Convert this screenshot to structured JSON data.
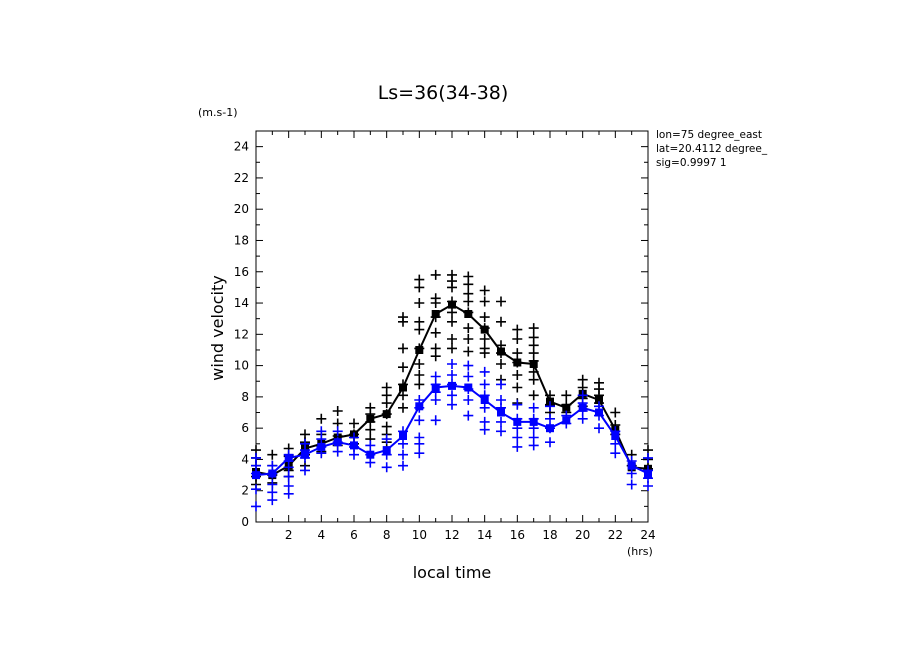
{
  "chart_data": {
    "type": "scatter",
    "title": "Ls=36(34-38)",
    "xlabel": "local time",
    "ylabel": "wind velocity",
    "x_unit": "(hrs)",
    "y_unit": "(m.s-1)",
    "xlim": [
      0,
      24
    ],
    "ylim": [
      0,
      25
    ],
    "x_ticks": [
      2,
      4,
      6,
      8,
      10,
      12,
      14,
      16,
      18,
      20,
      22,
      24
    ],
    "y_ticks": [
      0,
      2,
      4,
      6,
      8,
      10,
      12,
      14,
      16,
      18,
      20,
      22,
      24
    ],
    "grid": false,
    "annotations": [
      "lon=75 degree_east",
      "lat=20.4112 degree_",
      "sig=0.9997 1"
    ],
    "colors": {
      "series_1": "#000000",
      "series_2": "#0000ff"
    },
    "series": [
      {
        "color": "#000000",
        "mean": [
          [
            0,
            3.2
          ],
          [
            1,
            3.0
          ],
          [
            2,
            3.6
          ],
          [
            3,
            4.7
          ],
          [
            4,
            5.0
          ],
          [
            5,
            5.4
          ],
          [
            6,
            5.6
          ],
          [
            7,
            6.6
          ],
          [
            8,
            6.9
          ],
          [
            9,
            8.6
          ],
          [
            10,
            11.0
          ],
          [
            11,
            13.3
          ],
          [
            12,
            13.9
          ],
          [
            13,
            13.3
          ],
          [
            14,
            12.3
          ],
          [
            15,
            10.9
          ],
          [
            16,
            10.2
          ],
          [
            17,
            10.1
          ],
          [
            18,
            7.7
          ],
          [
            19,
            7.3
          ],
          [
            20,
            8.2
          ],
          [
            21,
            7.8
          ],
          [
            22,
            5.9
          ],
          [
            23,
            3.5
          ],
          [
            24,
            3.4
          ]
        ],
        "scatter": [
          [
            0,
            4.6
          ],
          [
            0,
            4.1
          ],
          [
            0,
            3.6
          ],
          [
            0,
            2.9
          ],
          [
            0,
            2.4
          ],
          [
            1,
            4.3
          ],
          [
            1,
            3.6
          ],
          [
            1,
            3.0
          ],
          [
            1,
            2.5
          ],
          [
            2,
            4.7
          ],
          [
            2,
            4.2
          ],
          [
            2,
            3.3
          ],
          [
            2,
            2.9
          ],
          [
            3,
            5.6
          ],
          [
            3,
            5.1
          ],
          [
            3,
            4.3
          ],
          [
            3,
            3.6
          ],
          [
            4,
            6.6
          ],
          [
            4,
            5.6
          ],
          [
            4,
            4.9
          ],
          [
            4,
            4.5
          ],
          [
            5,
            7.1
          ],
          [
            5,
            6.3
          ],
          [
            5,
            5.5
          ],
          [
            5,
            4.9
          ],
          [
            6,
            6.3
          ],
          [
            6,
            5.6
          ],
          [
            6,
            5.0
          ],
          [
            7,
            7.3
          ],
          [
            7,
            6.9
          ],
          [
            7,
            6.4
          ],
          [
            7,
            5.9
          ],
          [
            7,
            5.3
          ],
          [
            8,
            8.6
          ],
          [
            8,
            8.1
          ],
          [
            8,
            7.6
          ],
          [
            8,
            6.9
          ],
          [
            8,
            6.1
          ],
          [
            8,
            5.6
          ],
          [
            8,
            5.1
          ],
          [
            9,
            13.1
          ],
          [
            9,
            12.8
          ],
          [
            9,
            11.1
          ],
          [
            9,
            9.9
          ],
          [
            9,
            8.8
          ],
          [
            9,
            8.1
          ],
          [
            9,
            7.3
          ],
          [
            10,
            15.5
          ],
          [
            10,
            15.0
          ],
          [
            10,
            14.0
          ],
          [
            10,
            12.8
          ],
          [
            10,
            12.3
          ],
          [
            10,
            11.1
          ],
          [
            10,
            10.1
          ],
          [
            10,
            9.4
          ],
          [
            10,
            8.8
          ],
          [
            11,
            15.8
          ],
          [
            11,
            14.3
          ],
          [
            11,
            14.0
          ],
          [
            11,
            13.1
          ],
          [
            11,
            12.1
          ],
          [
            11,
            11.1
          ],
          [
            11,
            10.6
          ],
          [
            12,
            15.8
          ],
          [
            12,
            15.4
          ],
          [
            12,
            15.0
          ],
          [
            12,
            14.1
          ],
          [
            12,
            13.4
          ],
          [
            12,
            12.8
          ],
          [
            12,
            11.7
          ],
          [
            12,
            11.1
          ],
          [
            13,
            15.7
          ],
          [
            13,
            15.2
          ],
          [
            13,
            14.6
          ],
          [
            13,
            14.1
          ],
          [
            13,
            13.4
          ],
          [
            13,
            12.4
          ],
          [
            13,
            11.7
          ],
          [
            13,
            10.9
          ],
          [
            14,
            14.8
          ],
          [
            14,
            14.1
          ],
          [
            14,
            13.1
          ],
          [
            14,
            12.4
          ],
          [
            14,
            11.7
          ],
          [
            14,
            11.1
          ],
          [
            14,
            10.8
          ],
          [
            15,
            14.1
          ],
          [
            15,
            12.8
          ],
          [
            15,
            11.3
          ],
          [
            15,
            10.8
          ],
          [
            15,
            10.1
          ],
          [
            15,
            9.1
          ],
          [
            16,
            12.3
          ],
          [
            16,
            11.7
          ],
          [
            16,
            10.8
          ],
          [
            16,
            10.2
          ],
          [
            16,
            9.4
          ],
          [
            16,
            8.6
          ],
          [
            16,
            7.6
          ],
          [
            17,
            12.4
          ],
          [
            17,
            11.8
          ],
          [
            17,
            11.3
          ],
          [
            17,
            10.8
          ],
          [
            17,
            10.3
          ],
          [
            17,
            9.6
          ],
          [
            17,
            9.1
          ],
          [
            17,
            8.1
          ],
          [
            18,
            8.1
          ],
          [
            18,
            7.5
          ],
          [
            18,
            7.0
          ],
          [
            19,
            8.1
          ],
          [
            19,
            7.5
          ],
          [
            19,
            7.0
          ],
          [
            20,
            9.1
          ],
          [
            20,
            8.6
          ],
          [
            20,
            7.9
          ],
          [
            20,
            7.4
          ],
          [
            21,
            8.9
          ],
          [
            21,
            8.5
          ],
          [
            21,
            8.1
          ],
          [
            21,
            7.6
          ],
          [
            22,
            7.0
          ],
          [
            22,
            6.2
          ],
          [
            22,
            5.6
          ],
          [
            23,
            4.3
          ],
          [
            23,
            3.6
          ],
          [
            24,
            4.6
          ],
          [
            24,
            4.0
          ],
          [
            24,
            3.4
          ]
        ]
      },
      {
        "color": "#0000ff",
        "mean": [
          [
            0,
            3.0
          ],
          [
            1,
            3.1
          ],
          [
            2,
            4.1
          ],
          [
            3,
            4.3
          ],
          [
            4,
            4.8
          ],
          [
            5,
            5.1
          ],
          [
            6,
            4.9
          ],
          [
            7,
            4.3
          ],
          [
            8,
            4.6
          ],
          [
            9,
            5.5
          ],
          [
            10,
            7.4
          ],
          [
            11,
            8.6
          ],
          [
            12,
            8.7
          ],
          [
            13,
            8.6
          ],
          [
            14,
            7.8
          ],
          [
            15,
            7.0
          ],
          [
            16,
            6.4
          ],
          [
            17,
            6.4
          ],
          [
            18,
            6.0
          ],
          [
            19,
            6.5
          ],
          [
            20,
            7.3
          ],
          [
            21,
            7.0
          ],
          [
            22,
            5.5
          ],
          [
            23,
            3.6
          ],
          [
            24,
            3.1
          ]
        ],
        "scatter": [
          [
            0,
            4.1
          ],
          [
            0,
            3.6
          ],
          [
            0,
            3.1
          ],
          [
            0,
            2.1
          ],
          [
            0,
            1.0
          ],
          [
            1,
            3.6
          ],
          [
            1,
            3.1
          ],
          [
            1,
            2.4
          ],
          [
            1,
            1.9
          ],
          [
            1,
            1.4
          ],
          [
            2,
            4.3
          ],
          [
            2,
            3.9
          ],
          [
            2,
            3.5
          ],
          [
            2,
            2.9
          ],
          [
            2,
            2.3
          ],
          [
            2,
            1.8
          ],
          [
            3,
            5.0
          ],
          [
            3,
            4.6
          ],
          [
            3,
            4.1
          ],
          [
            3,
            3.3
          ],
          [
            4,
            5.8
          ],
          [
            4,
            5.3
          ],
          [
            4,
            4.8
          ],
          [
            4,
            4.4
          ],
          [
            5,
            5.8
          ],
          [
            5,
            5.1
          ],
          [
            5,
            4.5
          ],
          [
            6,
            5.4
          ],
          [
            6,
            4.8
          ],
          [
            6,
            4.3
          ],
          [
            7,
            4.9
          ],
          [
            7,
            4.3
          ],
          [
            7,
            3.8
          ],
          [
            8,
            5.3
          ],
          [
            8,
            4.3
          ],
          [
            8,
            3.5
          ],
          [
            9,
            5.8
          ],
          [
            9,
            5.0
          ],
          [
            9,
            4.3
          ],
          [
            9,
            3.6
          ],
          [
            10,
            7.8
          ],
          [
            10,
            7.3
          ],
          [
            10,
            6.5
          ],
          [
            10,
            5.4
          ],
          [
            10,
            5.0
          ],
          [
            10,
            4.4
          ],
          [
            11,
            9.3
          ],
          [
            11,
            8.8
          ],
          [
            11,
            8.3
          ],
          [
            11,
            7.8
          ],
          [
            11,
            6.5
          ],
          [
            12,
            10.1
          ],
          [
            12,
            9.4
          ],
          [
            12,
            8.8
          ],
          [
            12,
            8.1
          ],
          [
            12,
            7.5
          ],
          [
            13,
            10.0
          ],
          [
            13,
            9.3
          ],
          [
            13,
            8.5
          ],
          [
            13,
            7.8
          ],
          [
            13,
            6.8
          ],
          [
            14,
            9.6
          ],
          [
            14,
            8.8
          ],
          [
            14,
            8.1
          ],
          [
            14,
            7.3
          ],
          [
            14,
            6.4
          ],
          [
            14,
            5.9
          ],
          [
            15,
            8.8
          ],
          [
            15,
            7.8
          ],
          [
            15,
            7.3
          ],
          [
            15,
            6.4
          ],
          [
            15,
            5.8
          ],
          [
            16,
            7.5
          ],
          [
            16,
            6.6
          ],
          [
            16,
            6.0
          ],
          [
            16,
            5.4
          ],
          [
            16,
            4.8
          ],
          [
            17,
            7.3
          ],
          [
            17,
            6.6
          ],
          [
            17,
            6.0
          ],
          [
            17,
            5.4
          ],
          [
            17,
            4.9
          ],
          [
            18,
            7.4
          ],
          [
            18,
            6.6
          ],
          [
            18,
            6.0
          ],
          [
            18,
            5.1
          ],
          [
            19,
            6.8
          ],
          [
            19,
            6.3
          ],
          [
            20,
            8.1
          ],
          [
            20,
            7.6
          ],
          [
            20,
            7.1
          ],
          [
            20,
            6.6
          ],
          [
            21,
            7.4
          ],
          [
            21,
            6.8
          ],
          [
            21,
            6.0
          ],
          [
            22,
            5.8
          ],
          [
            22,
            5.0
          ],
          [
            22,
            4.4
          ],
          [
            23,
            3.9
          ],
          [
            23,
            3.1
          ],
          [
            23,
            2.4
          ],
          [
            24,
            4.1
          ],
          [
            24,
            3.3
          ],
          [
            24,
            2.8
          ],
          [
            24,
            2.3
          ]
        ]
      }
    ]
  }
}
